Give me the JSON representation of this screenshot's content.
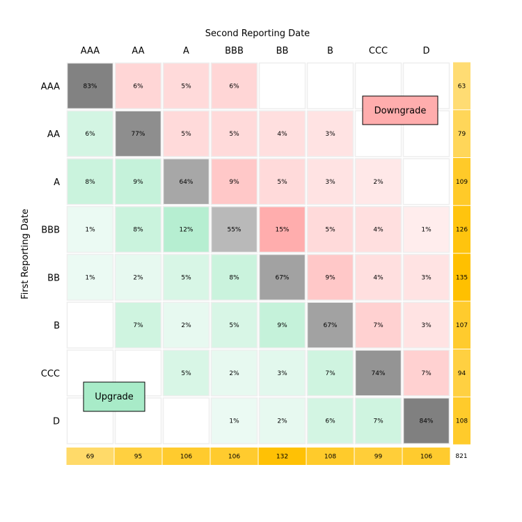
{
  "chart_data": {
    "type": "heatmap",
    "title": "",
    "xlabel": "Second Reporting Date",
    "ylabel": "First Reporting Date",
    "x_categories": [
      "AAA",
      "AA",
      "A",
      "BBB",
      "BB",
      "B",
      "CCC",
      "D"
    ],
    "y_categories": [
      "AAA",
      "AA",
      "A",
      "BBB",
      "BB",
      "B",
      "CCC",
      "D"
    ],
    "values": [
      [
        83,
        6,
        5,
        6,
        null,
        null,
        null,
        null
      ],
      [
        6,
        77,
        5,
        5,
        4,
        3,
        null,
        null
      ],
      [
        8,
        9,
        64,
        9,
        5,
        3,
        2,
        null
      ],
      [
        1,
        8,
        12,
        55,
        15,
        5,
        4,
        1
      ],
      [
        1,
        2,
        5,
        8,
        67,
        9,
        4,
        3
      ],
      [
        null,
        7,
        2,
        5,
        9,
        67,
        7,
        3
      ],
      [
        null,
        null,
        5,
        2,
        3,
        7,
        74,
        7
      ],
      [
        null,
        null,
        null,
        1,
        2,
        6,
        7,
        84
      ]
    ],
    "value_suffix": "%",
    "row_totals": [
      63,
      79,
      109,
      126,
      135,
      107,
      94,
      108
    ],
    "column_totals": [
      69,
      95,
      106,
      106,
      132,
      108,
      99,
      106
    ],
    "grand_total": 821,
    "annotations": [
      {
        "text": "Downgrade",
        "region": "upper-right",
        "color": "#ffadad"
      },
      {
        "text": "Upgrade",
        "region": "lower-left",
        "color": "#a8ebc8"
      }
    ],
    "colors": {
      "diagonal": "#808080",
      "downgrade": "#ffadad",
      "upgrade": "#a8ebc8",
      "totals": "#ffc000",
      "gridline": "#eeeeee"
    }
  }
}
